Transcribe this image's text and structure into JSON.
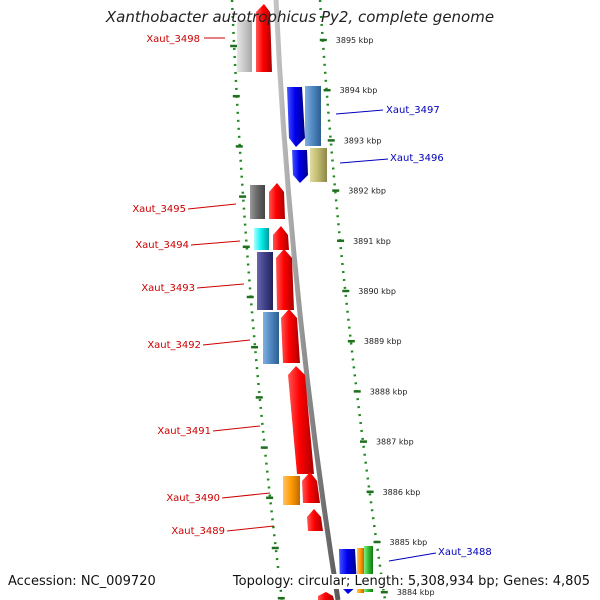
{
  "title": "Xanthobacter autotrophicus Py2, complete genome",
  "footer": {
    "accession": "Accession: NC_009720",
    "topology": "Topology: circular; Length: 5,308,934 bp; Genes: 4,805"
  },
  "colors": {
    "forward_label": "#cc0000",
    "reverse_label": "#0000bb",
    "backbone": "#8c8c8c",
    "dotted_guides": "#228822"
  },
  "kbp_ticks": [
    {
      "label": "3895 kbp"
    },
    {
      "label": "3894 kbp"
    },
    {
      "label": "3893 kbp"
    },
    {
      "label": "3892 kbp"
    },
    {
      "label": "3891 kbp"
    },
    {
      "label": "3890 kbp"
    },
    {
      "label": "3889 kbp"
    },
    {
      "label": "3888 kbp"
    },
    {
      "label": "3887 kbp"
    },
    {
      "label": "3886 kbp"
    },
    {
      "label": "3885 kbp"
    },
    {
      "label": "3884 kbp"
    }
  ],
  "genes": [
    {
      "label": "Xaut_3498",
      "strand": "forward"
    },
    {
      "label": "Xaut_3497",
      "strand": "reverse"
    },
    {
      "label": "Xaut_3496",
      "strand": "reverse"
    },
    {
      "label": "Xaut_3495",
      "strand": "forward"
    },
    {
      "label": "Xaut_3494",
      "strand": "forward"
    },
    {
      "label": "Xaut_3493",
      "strand": "forward"
    },
    {
      "label": "Xaut_3492",
      "strand": "forward"
    },
    {
      "label": "Xaut_3491",
      "strand": "forward"
    },
    {
      "label": "Xaut_3490",
      "strand": "forward"
    },
    {
      "label": "Xaut_3489",
      "strand": "forward"
    },
    {
      "label": "Xaut_3488",
      "strand": "reverse"
    }
  ]
}
